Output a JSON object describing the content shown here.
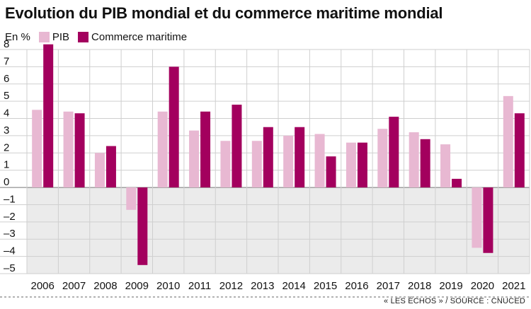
{
  "chart_data": {
    "type": "bar",
    "title": "Evolution du PIB mondial et du commerce maritime mondial",
    "ylabel": "En %",
    "categories": [
      "2006",
      "2007",
      "2008",
      "2009",
      "2010",
      "2011",
      "2012",
      "2013",
      "2014",
      "2015",
      "2016",
      "2017",
      "2018",
      "2019",
      "2020",
      "2021"
    ],
    "series": [
      {
        "name": "PIB",
        "color": "#e8b8d2",
        "values": [
          4.5,
          4.4,
          2.0,
          -1.3,
          4.4,
          3.3,
          2.7,
          2.7,
          3.0,
          3.1,
          2.6,
          3.4,
          3.2,
          2.5,
          -3.5,
          5.3
        ]
      },
      {
        "name": "Commerce maritime",
        "color": "#a3005e",
        "values": [
          8.3,
          4.3,
          2.4,
          -4.5,
          7.0,
          4.4,
          4.8,
          3.5,
          3.5,
          1.8,
          2.6,
          4.1,
          2.8,
          0.5,
          -3.8,
          4.3
        ]
      }
    ],
    "ylim": [
      -5,
      8
    ],
    "yticks": [
      8,
      7,
      6,
      5,
      4,
      3,
      2,
      1,
      0,
      -1,
      -2,
      -3,
      -4,
      -5
    ],
    "ytick_labels": [
      "8",
      "7",
      "6",
      "5",
      "4",
      "3",
      "2",
      "1",
      "0",
      "–1",
      "–2",
      "–3",
      "–4",
      "–5"
    ],
    "negative_area_color": "#ebebeb",
    "grid": true,
    "legend_position": "top-left"
  },
  "source": "« LES ÉCHOS » / SOURCE : CNUCED"
}
